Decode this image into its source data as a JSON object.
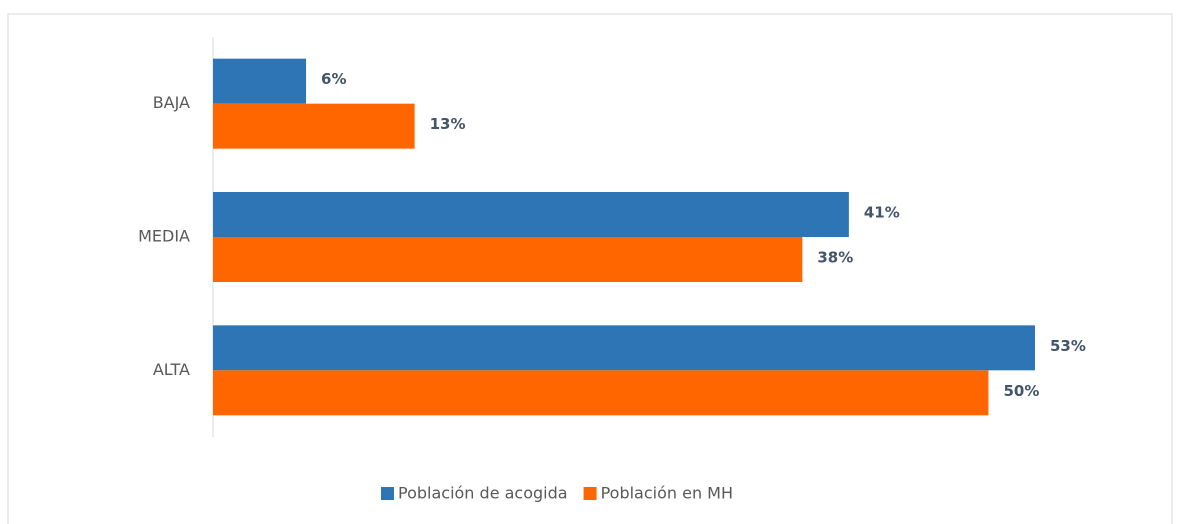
{
  "chart_data": {
    "type": "hbar",
    "categories": [
      "BAJA",
      "MEDIA",
      "ALTA"
    ],
    "series": [
      {
        "name": "Población de acogida",
        "color": "#2e75b6",
        "values": [
          6,
          41,
          53
        ],
        "value_labels": [
          "6%",
          "41%",
          "53%"
        ]
      },
      {
        "name": "Población en MH",
        "color": "#ff6600",
        "values": [
          13,
          38,
          50
        ],
        "value_labels": [
          "13%",
          "38%",
          "50%"
        ]
      }
    ],
    "xlim": [
      0,
      55
    ],
    "legend": "bottom"
  }
}
